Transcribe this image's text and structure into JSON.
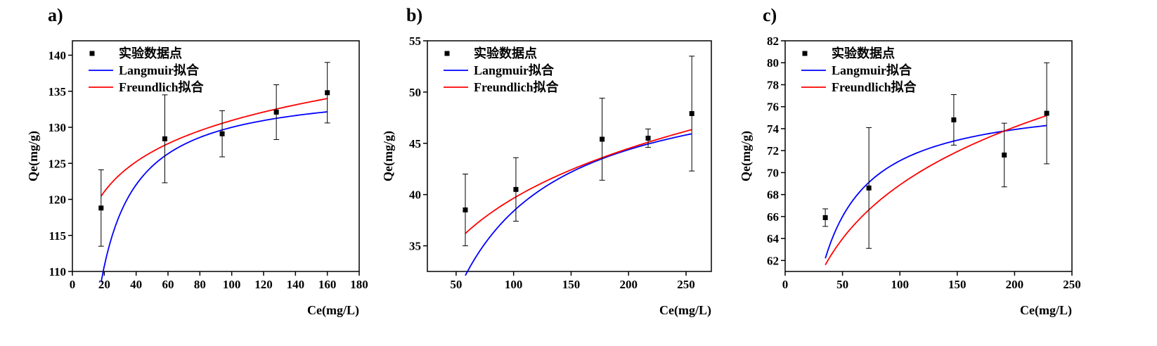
{
  "chart_data": [
    {
      "panel_label": "a)",
      "type": "scatter",
      "xlabel": "Ce(mg/L)",
      "ylabel": "Qe(mg/g)",
      "xlim": [
        0,
        180
      ],
      "ylim": [
        110,
        142
      ],
      "xticks": [
        0,
        20,
        40,
        60,
        80,
        100,
        120,
        140,
        160,
        180
      ],
      "yticks": [
        110,
        115,
        120,
        125,
        130,
        135,
        140
      ],
      "legend_position": "top-left",
      "points": {
        "name": "实验数据点",
        "x": [
          18,
          58,
          94,
          128,
          160
        ],
        "y": [
          118.8,
          128.4,
          129.1,
          132.1,
          134.8
        ],
        "err": [
          5.3,
          6.1,
          3.2,
          3.8,
          4.2
        ]
      },
      "langmuir": {
        "name": "Langmuir拟合",
        "color": "#0000ff",
        "qm": 135.9,
        "kl": 0.22,
        "x_range": [
          18,
          160
        ]
      },
      "freundlich": {
        "name": "Freundlich拟合",
        "color": "#ff0000",
        "kf": 104.6,
        "n": 20.5,
        "x_range": [
          18,
          160
        ]
      }
    },
    {
      "panel_label": "b)",
      "type": "scatter",
      "xlabel": "Ce(mg/L)",
      "ylabel": "Qe(mg/g)",
      "xlim": [
        25,
        272
      ],
      "ylim": [
        32.5,
        55
      ],
      "xticks": [
        50,
        100,
        150,
        200,
        250
      ],
      "yticks": [
        35,
        40,
        45,
        50,
        55
      ],
      "legend_position": "top-left",
      "points": {
        "name": "实验数据点",
        "x": [
          58,
          102,
          177,
          217,
          255
        ],
        "y": [
          38.5,
          40.5,
          45.4,
          45.5,
          47.9
        ],
        "err": [
          3.5,
          3.1,
          4.0,
          0.9,
          5.6
        ]
      },
      "langmuir": {
        "name": "Langmuir拟合",
        "color": "#0000ff",
        "qm": 52.6,
        "kl": 0.027,
        "x_range": [
          58,
          255
        ]
      },
      "freundlich": {
        "name": "Freundlich拟合",
        "color": "#ff0000",
        "kf": 18.4,
        "n": 6.0,
        "x_range": [
          58,
          255
        ]
      }
    },
    {
      "panel_label": "c)",
      "type": "scatter",
      "xlabel": "Ce(mg/L)",
      "ylabel": "Qe(mg/g)",
      "xlim": [
        0,
        250
      ],
      "ylim": [
        61,
        82
      ],
      "xticks": [
        0,
        50,
        100,
        150,
        200,
        250
      ],
      "yticks": [
        62,
        64,
        66,
        68,
        70,
        72,
        74,
        76,
        78,
        80,
        82
      ],
      "legend_position": "top-left",
      "points": {
        "name": "实验数据点",
        "x": [
          35,
          73,
          147,
          191,
          228
        ],
        "y": [
          65.9,
          68.6,
          74.8,
          71.6,
          75.4
        ],
        "err": [
          0.8,
          5.5,
          2.3,
          2.9,
          4.6
        ]
      },
      "langmuir": {
        "name": "Langmuir拟合",
        "color": "#0000ff",
        "qm": 77.0,
        "kl": 0.12,
        "x_range": [
          35,
          228
        ]
      },
      "freundlich": {
        "name": "Freundlich拟合",
        "color": "#ff0000",
        "kf": 42.2,
        "n": 9.4,
        "x_range": [
          35,
          228
        ]
      }
    }
  ]
}
